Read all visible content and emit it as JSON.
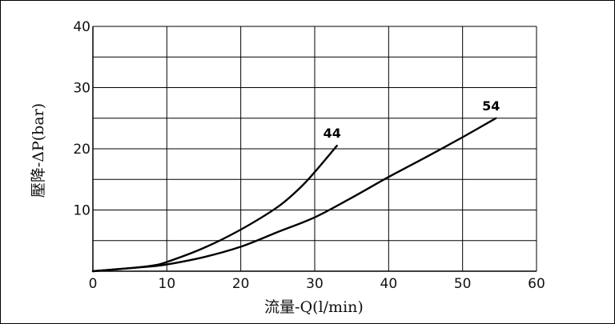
{
  "chart_data": {
    "type": "line",
    "xlabel": "流量-Q(l/min)",
    "ylabel": "壓降-ΔP(bar)",
    "xlim": [
      0,
      60
    ],
    "ylim": [
      0,
      40
    ],
    "x_ticks": [
      "0",
      "10",
      "20",
      "30",
      "40",
      "50",
      "60"
    ],
    "y_ticks": [
      "10",
      "20",
      "30",
      "40"
    ],
    "grid": true,
    "series": [
      {
        "name": "44",
        "color": "#000000",
        "x": [
          0,
          5,
          8,
          10,
          15,
          20,
          25,
          28,
          30,
          33
        ],
        "y": [
          0,
          0.5,
          0.9,
          1.5,
          3.8,
          6.8,
          10.5,
          13.6,
          16.2,
          20.5
        ]
      },
      {
        "name": "54",
        "color": "#000000",
        "x": [
          0,
          5,
          8,
          10,
          15,
          20,
          25,
          30,
          35,
          40,
          45,
          50,
          54.5
        ],
        "y": [
          0,
          0.5,
          0.8,
          1.1,
          2.3,
          4.0,
          6.4,
          8.8,
          12.0,
          15.4,
          18.6,
          21.9,
          25
        ]
      }
    ]
  }
}
